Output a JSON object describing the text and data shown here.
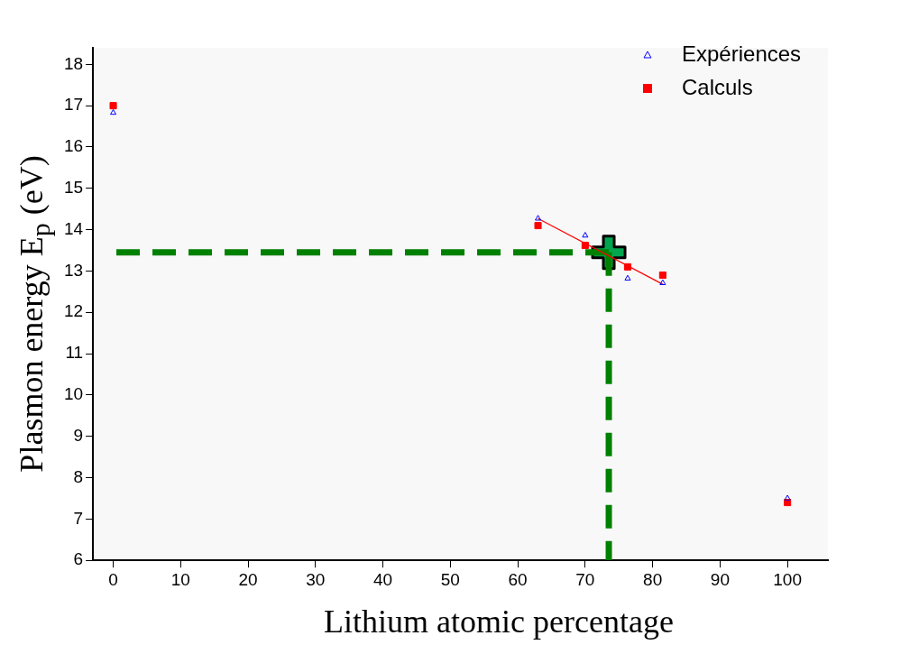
{
  "chart_data": {
    "type": "scatter",
    "xlabel": "Lithium atomic percentage",
    "ylabel": "Plasmon energy E$_{p}$ (eV)",
    "xlim": [
      -3,
      106
    ],
    "xticks": [
      0,
      10,
      20,
      30,
      40,
      50,
      60,
      70,
      80,
      90,
      100
    ],
    "ylim": [
      6,
      18.4
    ],
    "yticks": [
      6,
      7,
      8,
      9,
      10,
      11,
      12,
      13,
      14,
      15,
      16,
      17,
      18
    ],
    "grid": false,
    "legend": "top right",
    "series": [
      {
        "name": "Expériences",
        "marker": "triangle",
        "color": "#0000ff",
        "x": [
          0,
          63,
          70,
          76.3,
          81.5,
          100
        ],
        "values": [
          16.83,
          14.27,
          13.86,
          12.82,
          12.71,
          7.5
        ]
      },
      {
        "name": "Calculs",
        "marker": "square",
        "color": "#ff0000",
        "x": [
          0,
          63,
          70,
          76.3,
          81.5,
          100
        ],
        "values": [
          17.0,
          14.1,
          13.62,
          13.1,
          12.9,
          7.4
        ]
      },
      {
        "type": "line",
        "marker": "none",
        "line_style": "solid",
        "color": "#ff0000",
        "x": [
          63,
          81.5
        ],
        "values": [
          14.27,
          12.68
        ]
      },
      {
        "type": "line",
        "marker": "none",
        "line_style": "dashed",
        "color": "#008000",
        "x": [
          73.5,
          0
        ],
        "values": [
          13.45,
          13.45
        ]
      },
      {
        "type": "line",
        "marker": "none",
        "line_style": "dashed",
        "color": "#008000",
        "x": [
          73.5,
          73.5
        ],
        "values": [
          13.45,
          6
        ]
      },
      {
        "marker": "cross",
        "color": "#00a550",
        "x": [
          73.5
        ],
        "values": [
          13.45
        ]
      }
    ]
  }
}
